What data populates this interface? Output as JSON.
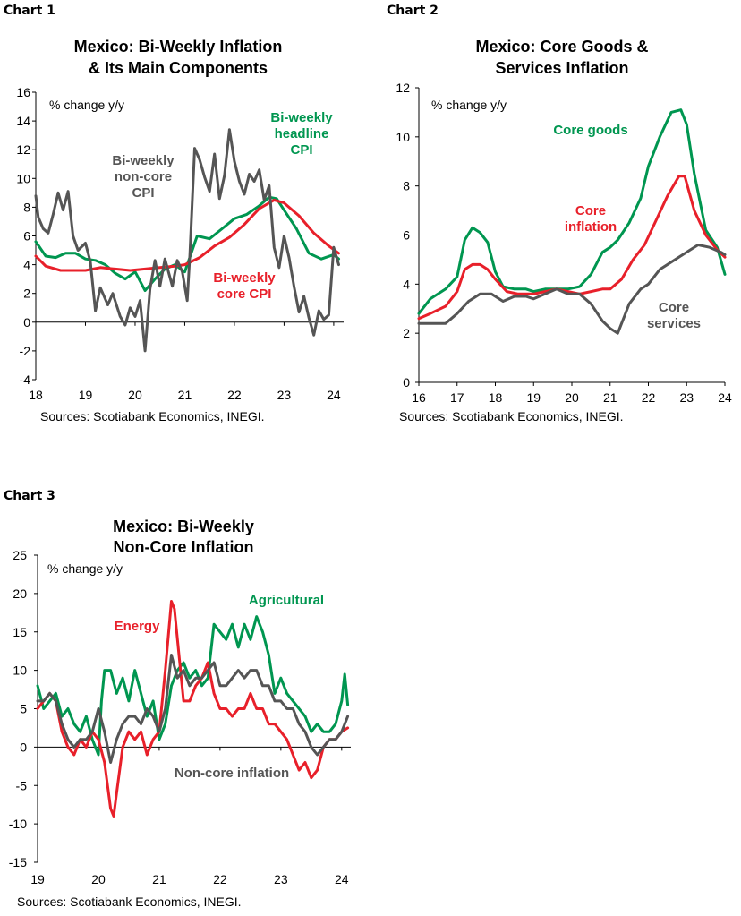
{
  "chart_data": [
    {
      "label": "Chart 1",
      "type": "line",
      "title": [
        "Mexico: Bi-Weekly Inflation",
        "& Its Main Components"
      ],
      "unit_label": "% change y/y",
      "source": "Sources: Scotiabank Economics, INEGI.",
      "xlim": [
        2018,
        2024.2
      ],
      "ylim": [
        -4,
        16
      ],
      "xticks": [
        {
          "v": 2018,
          "label": "18"
        },
        {
          "v": 2019,
          "label": "19"
        },
        {
          "v": 2020,
          "label": "20"
        },
        {
          "v": 2021,
          "label": "21"
        },
        {
          "v": 2022,
          "label": "22"
        },
        {
          "v": 2023,
          "label": "23"
        },
        {
          "v": 2024,
          "label": "24"
        }
      ],
      "yticks": [
        -4,
        -2,
        0,
        2,
        4,
        6,
        8,
        10,
        12,
        14,
        16
      ],
      "series": [
        {
          "color": "#009650",
          "x": [
            2018,
            2018.2,
            2018.4,
            2018.6,
            2018.8,
            2019,
            2019.2,
            2019.4,
            2019.6,
            2019.8,
            2020,
            2020.2,
            2020.4,
            2020.6,
            2020.8,
            2021,
            2021.15,
            2021.25,
            2021.5,
            2021.75,
            2022,
            2022.25,
            2022.5,
            2022.7,
            2022.85,
            2023,
            2023.25,
            2023.5,
            2023.75,
            2024,
            2024.1
          ],
          "y": [
            5.6,
            4.6,
            4.5,
            4.8,
            4.8,
            4.4,
            4.3,
            4.0,
            3.4,
            3.0,
            3.5,
            2.2,
            3.0,
            3.7,
            4.0,
            3.5,
            5.0,
            6.0,
            5.8,
            6.5,
            7.2,
            7.5,
            8.1,
            8.7,
            8.6,
            7.8,
            6.5,
            4.8,
            4.4,
            4.7,
            4.4
          ]
        },
        {
          "color": "#e8202a",
          "x": [
            2018,
            2018.2,
            2018.5,
            2018.8,
            2019,
            2019.3,
            2019.6,
            2019.9,
            2020.2,
            2020.5,
            2020.8,
            2021,
            2021.3,
            2021.6,
            2021.9,
            2022.2,
            2022.5,
            2022.8,
            2023,
            2023.3,
            2023.6,
            2023.9,
            2024.1
          ],
          "y": [
            4.6,
            3.9,
            3.6,
            3.6,
            3.6,
            3.8,
            3.7,
            3.6,
            3.7,
            3.8,
            3.9,
            4.0,
            4.5,
            5.3,
            5.9,
            6.8,
            7.9,
            8.5,
            8.3,
            7.4,
            6.2,
            5.3,
            4.8
          ]
        },
        {
          "color": "#555555",
          "x": [
            2018,
            2018.05,
            2018.15,
            2018.25,
            2018.35,
            2018.45,
            2018.55,
            2018.65,
            2018.75,
            2018.85,
            2019,
            2019.1,
            2019.2,
            2019.3,
            2019.45,
            2019.55,
            2019.7,
            2019.8,
            2019.9,
            2020,
            2020.1,
            2020.2,
            2020.3,
            2020.4,
            2020.5,
            2020.6,
            2020.75,
            2020.85,
            2020.95,
            2021.05,
            2021.1,
            2021.2,
            2021.3,
            2021.4,
            2021.5,
            2021.6,
            2021.7,
            2021.8,
            2021.9,
            2022,
            2022.1,
            2022.2,
            2022.3,
            2022.4,
            2022.5,
            2022.6,
            2022.7,
            2022.8,
            2022.9,
            2023,
            2023.1,
            2023.2,
            2023.3,
            2023.4,
            2023.5,
            2023.6,
            2023.7,
            2023.8,
            2023.9,
            2024,
            2024.1
          ],
          "y": [
            8.8,
            7.3,
            6.5,
            6.2,
            7.5,
            9.0,
            7.8,
            9.1,
            6.0,
            5.0,
            5.5,
            4.2,
            0.8,
            2.4,
            1.2,
            2.0,
            0.4,
            -0.2,
            1.0,
            0.4,
            1.5,
            -2.0,
            2.3,
            4.3,
            2.5,
            4.4,
            2.5,
            4.3,
            3.5,
            1.5,
            4.5,
            12.1,
            11.3,
            10.1,
            9.1,
            11.7,
            8.6,
            10.2,
            13.4,
            11.2,
            9.8,
            8.9,
            10.3,
            9.8,
            10.6,
            8.5,
            9.5,
            5.2,
            3.8,
            6.0,
            4.5,
            2.5,
            0.7,
            1.8,
            0.3,
            -0.9,
            0.8,
            0.2,
            0.5,
            5.2,
            4.0
          ]
        }
      ],
      "annotations": [
        {
          "color": "#555555",
          "lines": [
            "Bi-weekly",
            "non-core",
            "CPI"
          ]
        },
        {
          "color": "#009650",
          "lines": [
            "Bi-weekly",
            "headline",
            "CPI"
          ]
        },
        {
          "color": "#e8202a",
          "lines": [
            "Bi-weekly",
            "core CPI"
          ]
        }
      ]
    },
    {
      "label": "Chart 2",
      "type": "line",
      "title": [
        "Mexico: Core Goods &",
        "Services Inflation"
      ],
      "unit_label": "% change y/y",
      "source": "Sources: Scotiabank Economics, INEGI.",
      "xlim": [
        2016,
        2024
      ],
      "ylim": [
        0,
        12
      ],
      "xticks": [
        {
          "v": 2016,
          "label": "16"
        },
        {
          "v": 2017,
          "label": "17"
        },
        {
          "v": 2018,
          "label": "18"
        },
        {
          "v": 2019,
          "label": "19"
        },
        {
          "v": 2020,
          "label": "20"
        },
        {
          "v": 2021,
          "label": "21"
        },
        {
          "v": 2022,
          "label": "22"
        },
        {
          "v": 2023,
          "label": "23"
        },
        {
          "v": 2024,
          "label": "24"
        }
      ],
      "yticks": [
        0,
        2,
        4,
        6,
        8,
        10,
        12
      ],
      "series": [
        {
          "color": "#009650",
          "x": [
            2016,
            2016.3,
            2016.7,
            2017,
            2017.2,
            2017.4,
            2017.6,
            2017.8,
            2018,
            2018.2,
            2018.5,
            2018.8,
            2019,
            2019.3,
            2019.6,
            2019.9,
            2020.2,
            2020.5,
            2020.8,
            2021,
            2021.2,
            2021.5,
            2021.8,
            2022,
            2022.3,
            2022.6,
            2022.85,
            2023,
            2023.2,
            2023.5,
            2023.8,
            2024
          ],
          "y": [
            2.8,
            3.4,
            3.8,
            4.3,
            5.8,
            6.3,
            6.1,
            5.7,
            4.5,
            3.9,
            3.8,
            3.8,
            3.7,
            3.8,
            3.8,
            3.8,
            3.9,
            4.4,
            5.3,
            5.5,
            5.8,
            6.5,
            7.5,
            8.8,
            10.0,
            11.0,
            11.1,
            10.5,
            8.5,
            6.2,
            5.5,
            4.4
          ]
        },
        {
          "color": "#e8202a",
          "x": [
            2016,
            2016.3,
            2016.7,
            2017,
            2017.2,
            2017.4,
            2017.6,
            2017.8,
            2018,
            2018.3,
            2018.6,
            2019,
            2019.3,
            2019.6,
            2019.9,
            2020.2,
            2020.5,
            2020.8,
            2021,
            2021.3,
            2021.6,
            2021.9,
            2022.2,
            2022.5,
            2022.8,
            2022.95,
            2023.2,
            2023.5,
            2023.8,
            2024
          ],
          "y": [
            2.6,
            2.8,
            3.1,
            3.7,
            4.6,
            4.8,
            4.8,
            4.6,
            4.2,
            3.7,
            3.6,
            3.6,
            3.7,
            3.8,
            3.7,
            3.6,
            3.7,
            3.8,
            3.8,
            4.2,
            5.0,
            5.6,
            6.6,
            7.6,
            8.4,
            8.4,
            7.0,
            6.0,
            5.4,
            5.1
          ]
        },
        {
          "color": "#555555",
          "x": [
            2016,
            2016.3,
            2016.7,
            2017,
            2017.3,
            2017.6,
            2017.9,
            2018.2,
            2018.5,
            2018.8,
            2019,
            2019.3,
            2019.6,
            2019.9,
            2020.2,
            2020.5,
            2020.8,
            2021,
            2021.2,
            2021.5,
            2021.8,
            2022,
            2022.3,
            2022.6,
            2022.9,
            2023.1,
            2023.3,
            2023.6,
            2023.9,
            2024
          ],
          "y": [
            2.4,
            2.4,
            2.4,
            2.8,
            3.3,
            3.6,
            3.6,
            3.3,
            3.5,
            3.5,
            3.4,
            3.6,
            3.8,
            3.6,
            3.6,
            3.2,
            2.5,
            2.2,
            2.0,
            3.2,
            3.8,
            4.0,
            4.6,
            4.9,
            5.2,
            5.4,
            5.6,
            5.5,
            5.3,
            5.2
          ]
        }
      ],
      "annotations": [
        {
          "color": "#009650",
          "lines": [
            "Core goods"
          ]
        },
        {
          "color": "#e8202a",
          "lines": [
            "Core",
            "inflation"
          ]
        },
        {
          "color": "#555555",
          "lines": [
            "Core",
            "services"
          ]
        }
      ]
    },
    {
      "label": "Chart 3",
      "type": "line",
      "title": [
        "Mexico: Bi-Weekly",
        "Non-Core Inflation"
      ],
      "unit_label": "% change y/y",
      "source": "Sources: Scotiabank Economics, INEGI.",
      "xlim": [
        2019,
        2024.15
      ],
      "ylim": [
        -15,
        25
      ],
      "xticks": [
        {
          "v": 2019,
          "label": "19"
        },
        {
          "v": 2020,
          "label": "20"
        },
        {
          "v": 2021,
          "label": "21"
        },
        {
          "v": 2022,
          "label": "22"
        },
        {
          "v": 2023,
          "label": "23"
        },
        {
          "v": 2024,
          "label": "24"
        }
      ],
      "yticks": [
        -15,
        -10,
        -5,
        0,
        5,
        10,
        15,
        20,
        25
      ],
      "series": [
        {
          "color": "#009650",
          "x": [
            2019,
            2019.1,
            2019.2,
            2019.3,
            2019.4,
            2019.5,
            2019.6,
            2019.7,
            2019.8,
            2019.9,
            2020,
            2020.05,
            2020.1,
            2020.2,
            2020.3,
            2020.4,
            2020.5,
            2020.6,
            2020.7,
            2020.8,
            2020.9,
            2021,
            2021.1,
            2021.2,
            2021.3,
            2021.4,
            2021.5,
            2021.6,
            2021.7,
            2021.8,
            2021.9,
            2022,
            2022.1,
            2022.2,
            2022.3,
            2022.4,
            2022.5,
            2022.6,
            2022.7,
            2022.8,
            2022.9,
            2023,
            2023.1,
            2023.2,
            2023.3,
            2023.4,
            2023.5,
            2023.6,
            2023.7,
            2023.8,
            2023.9,
            2024,
            2024.05,
            2024.1
          ],
          "y": [
            8,
            5,
            6,
            7,
            4,
            5,
            3,
            2,
            4,
            1,
            -1,
            6,
            10,
            10,
            7,
            9,
            6,
            10,
            7,
            4,
            6,
            1,
            3,
            8,
            10,
            11,
            9,
            10,
            8,
            9,
            16,
            15,
            14,
            16,
            13,
            16,
            14,
            17,
            15,
            12,
            7,
            9,
            7,
            6,
            5,
            4,
            2,
            3,
            2,
            2,
            3,
            6,
            9.5,
            5.5
          ]
        },
        {
          "color": "#e8202a",
          "x": [
            2019,
            2019.1,
            2019.2,
            2019.3,
            2019.4,
            2019.5,
            2019.6,
            2019.7,
            2019.8,
            2019.9,
            2020,
            2020.1,
            2020.2,
            2020.25,
            2020.3,
            2020.4,
            2020.5,
            2020.6,
            2020.7,
            2020.8,
            2020.9,
            2021,
            2021.1,
            2021.2,
            2021.25,
            2021.3,
            2021.4,
            2021.5,
            2021.6,
            2021.7,
            2021.8,
            2021.9,
            2022,
            2022.1,
            2022.2,
            2022.3,
            2022.4,
            2022.5,
            2022.6,
            2022.7,
            2022.8,
            2022.9,
            2023,
            2023.1,
            2023.2,
            2023.3,
            2023.4,
            2023.5,
            2023.6,
            2023.7,
            2023.8,
            2023.9,
            2024,
            2024.1
          ],
          "y": [
            5,
            6,
            7,
            6,
            2,
            0,
            -1,
            1,
            0,
            2,
            1,
            -2,
            -8,
            -9,
            -6,
            0,
            2,
            1,
            2,
            -1,
            1,
            2,
            10,
            19,
            18,
            14,
            6,
            6,
            8,
            9,
            11,
            7,
            5,
            5,
            4,
            5,
            5,
            7,
            5,
            5,
            3,
            3,
            2,
            1,
            -1,
            -3,
            -2,
            -4,
            -3,
            0,
            1,
            1,
            2,
            2.5
          ]
        },
        {
          "color": "#555555",
          "x": [
            2019,
            2019.1,
            2019.2,
            2019.3,
            2019.4,
            2019.5,
            2019.6,
            2019.7,
            2019.8,
            2019.9,
            2020,
            2020.1,
            2020.2,
            2020.3,
            2020.4,
            2020.5,
            2020.6,
            2020.7,
            2020.8,
            2020.9,
            2021,
            2021.1,
            2021.2,
            2021.3,
            2021.4,
            2021.5,
            2021.6,
            2021.7,
            2021.8,
            2021.9,
            2022,
            2022.1,
            2022.2,
            2022.3,
            2022.4,
            2022.5,
            2022.6,
            2022.7,
            2022.8,
            2022.9,
            2023,
            2023.1,
            2023.2,
            2023.3,
            2023.4,
            2023.5,
            2023.6,
            2023.7,
            2023.8,
            2023.9,
            2024,
            2024.1
          ],
          "y": [
            6,
            6,
            7,
            6,
            3,
            1,
            0,
            1,
            1,
            2,
            5,
            2,
            -2,
            1,
            3,
            4,
            4,
            3,
            5,
            4,
            2,
            5,
            12,
            9,
            10,
            8,
            9,
            9,
            10,
            11,
            8,
            8,
            9,
            10,
            9,
            10,
            10,
            8,
            8,
            6,
            6,
            5,
            5,
            3,
            2,
            0,
            -1,
            0,
            1,
            1,
            2,
            4
          ]
        }
      ],
      "annotations": [
        {
          "color": "#009650",
          "lines": [
            "Agricultural"
          ]
        },
        {
          "color": "#e8202a",
          "lines": [
            "Energy"
          ]
        },
        {
          "color": "#555555",
          "lines": [
            "Non-core inflation"
          ]
        }
      ]
    }
  ]
}
